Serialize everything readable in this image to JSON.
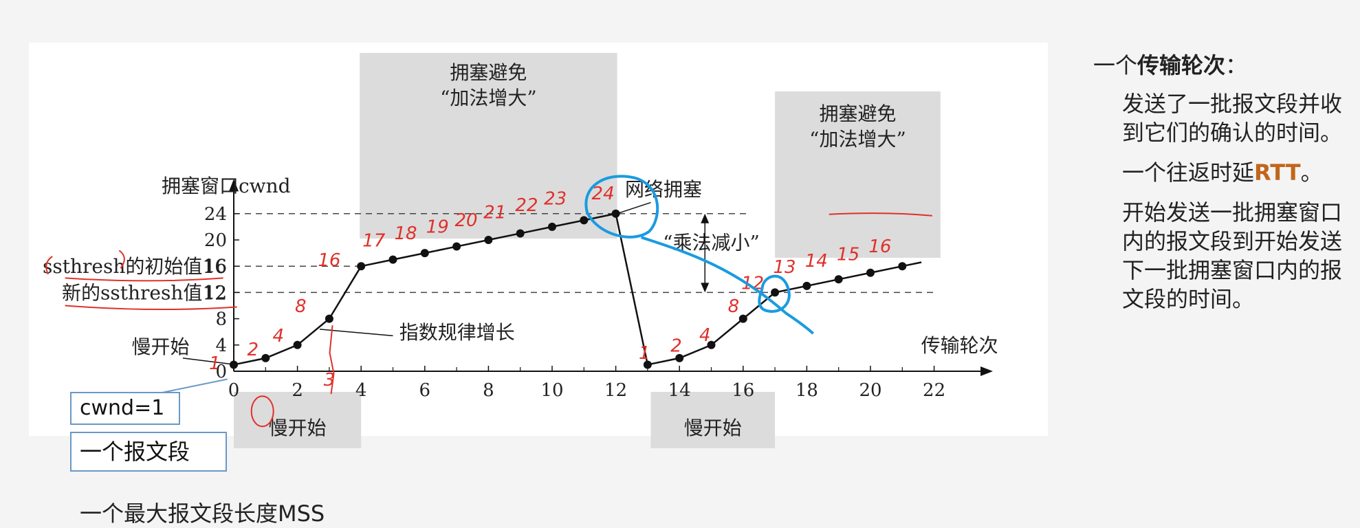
{
  "chart_data": {
    "type": "line",
    "xlabel": "传输轮次",
    "ylabel": "拥塞窗口cwnd",
    "xlim": [
      0,
      23
    ],
    "ylim": [
      0,
      26
    ],
    "xticks": [
      0,
      2,
      4,
      6,
      8,
      10,
      12,
      14,
      16,
      18,
      20,
      22
    ],
    "yticks": [
      0,
      4,
      8,
      12,
      16,
      20,
      24
    ],
    "series": [
      {
        "x": [
          0,
          1,
          2,
          3,
          4,
          5,
          6,
          7,
          8,
          9,
          10,
          11,
          12,
          13,
          14,
          15,
          16,
          17,
          18,
          19,
          20,
          21
        ],
        "y": [
          1,
          2,
          4,
          8,
          16,
          17,
          18,
          19,
          20,
          21,
          22,
          23,
          24,
          1,
          2,
          4,
          8,
          12,
          13,
          14,
          15,
          16
        ],
        "extend_to": [
          21.6,
          16.6
        ]
      }
    ],
    "ref_lines": [
      {
        "y": 24,
        "label": ""
      },
      {
        "y": 16,
        "label": "ssthresh的初始值16"
      },
      {
        "y": 12,
        "label": "新的ssthresh值12"
      }
    ],
    "regions": [
      {
        "label": "慢开始",
        "x_range": [
          0,
          4
        ]
      },
      {
        "label": "拥塞避免",
        "sublabel": "“加法增大”",
        "x_range": [
          4,
          12
        ]
      },
      {
        "label": "慢开始",
        "x_range": [
          13,
          17
        ]
      },
      {
        "label": "拥塞避免",
        "sublabel": "“加法增大”",
        "x_range": [
          17,
          22
        ]
      }
    ],
    "annotations": [
      {
        "text": "网络拥塞"
      },
      {
        "text": "“乘法减小”"
      },
      {
        "text": "指数规律增长"
      },
      {
        "text": "慢开始"
      }
    ],
    "handwritten": [
      "1",
      "2",
      "4",
      "8",
      "16",
      "17",
      "18",
      "19",
      "20",
      "21",
      "22",
      "23",
      "24",
      "3",
      "1",
      "2",
      "4",
      "8",
      "12",
      "13",
      "14",
      "15",
      "16"
    ]
  },
  "notes": {
    "cwnd": "cwnd=1",
    "segment": "一个报文段",
    "mss": "一个最大报文段长度MSS"
  },
  "sidebar": {
    "title_prefix": "一个",
    "title_bold": "传输轮次",
    "title_suffix": "：",
    "p1": "发送了一批报文段并收到它们的确认的时间。",
    "p2_prefix": "一个往返时延",
    "p2_rtt": "RTT",
    "p2_suffix": "。",
    "p3": "开始发送一批拥塞窗口内的报文段到开始发送下一批拥塞窗口内的报文段的时间。"
  },
  "colors": {
    "line": "#111111",
    "shade": "#dcdcdc",
    "handwriting": "#e0302a",
    "circle": "#1a9be0",
    "box_border": "#6a98c8",
    "rtt": "#c0661c"
  }
}
